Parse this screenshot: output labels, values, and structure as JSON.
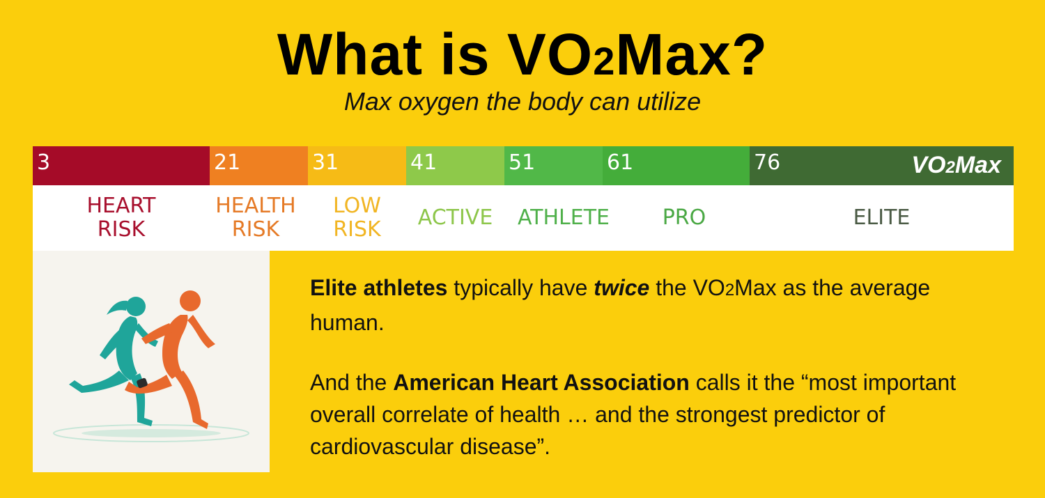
{
  "title": {
    "prefix": "What is VO",
    "sub": "2",
    "suffix": "Max?"
  },
  "subtitle": "Max oxygen the body can utilize",
  "scale": {
    "badge": {
      "prefix": "VO",
      "sub": "2",
      "suffix": "Max"
    },
    "segments": [
      {
        "value": "3",
        "label": "HEART\nRISK",
        "color": "#a50b28",
        "text_color": "#a80f2d"
      },
      {
        "value": "21",
        "label": "HEALTH\nRISK",
        "color": "#ef8021",
        "text_color": "#e57a26"
      },
      {
        "value": "31",
        "label": "LOW\nRISK",
        "color": "#f6bb16",
        "text_color": "#f1b523"
      },
      {
        "value": "41",
        "label": "ACTIVE",
        "color": "#8ec94a",
        "text_color": "#8dc64a"
      },
      {
        "value": "51",
        "label": "ATHLETE",
        "color": "#51b848",
        "text_color": "#4fb04a"
      },
      {
        "value": "61",
        "label": "PRO",
        "color": "#44ad3a",
        "text_color": "#4aa844"
      },
      {
        "value": "76",
        "label": "ELITE",
        "color": "#3f6a33",
        "text_color": "#4a5a44"
      }
    ]
  },
  "body": {
    "p1": {
      "bold1": "Elite athletes",
      "t1": " typically have ",
      "em": "twice",
      "t2": " the VO",
      "sub": "2",
      "t3": "Max as the average human."
    },
    "p2": {
      "t1": "And the ",
      "bold": "American Heart Association",
      "t2": " calls it the “most important overall correlate of health … and the strongest predictor of cardiovascular disease”."
    }
  },
  "illustration": {
    "icon": "runners-icon",
    "colors": {
      "woman": "#1fa59a",
      "man": "#e8692d"
    }
  }
}
